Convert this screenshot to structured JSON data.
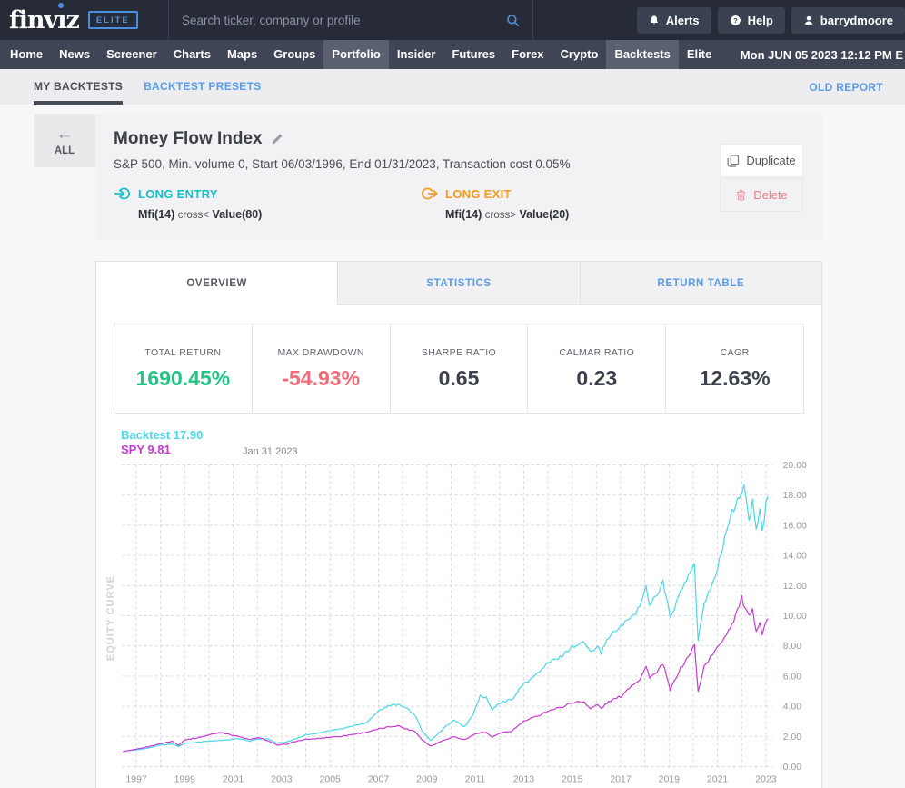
{
  "header": {
    "logo_text": "finviz",
    "logo_badge": "ELITE",
    "search": {
      "placeholder": "Search ticker, company or profile"
    },
    "buttons": [
      {
        "label": "Alerts",
        "icon": "bell-icon"
      },
      {
        "label": "Help",
        "icon": "help-icon"
      },
      {
        "label": "barrydmoore",
        "icon": "user-icon"
      }
    ],
    "accent_blue": "#4a90e2"
  },
  "nav": {
    "items": [
      {
        "label": "Home",
        "highlighted": false
      },
      {
        "label": "News",
        "highlighted": false
      },
      {
        "label": "Screener",
        "highlighted": false
      },
      {
        "label": "Charts",
        "highlighted": false
      },
      {
        "label": "Maps",
        "highlighted": false
      },
      {
        "label": "Groups",
        "highlighted": false
      },
      {
        "label": "Portfolio",
        "highlighted": true
      },
      {
        "label": "Insider",
        "highlighted": false
      },
      {
        "label": "Futures",
        "highlighted": false
      },
      {
        "label": "Forex",
        "highlighted": false
      },
      {
        "label": "Crypto",
        "highlighted": false
      },
      {
        "label": "Backtests",
        "highlighted": true
      },
      {
        "label": "Elite",
        "highlighted": false
      }
    ],
    "datetime": "Mon JUN 05 2023 12:12 PM E"
  },
  "subnav": {
    "tabs": [
      {
        "label": "MY BACKTESTS",
        "active": true
      },
      {
        "label": "BACKTEST PRESETS",
        "active": false
      }
    ],
    "right_link": "OLD REPORT"
  },
  "backtest": {
    "back_label": "ALL",
    "title": "Money Flow Index",
    "subtitle": "S&P 500, Min. volume 0, Start 06/03/1996, End 01/31/2023, Transaction cost 0.05%",
    "long_entry": {
      "label": "LONG ENTRY",
      "indicator": "Mfi(14)",
      "operator": "cross<",
      "target": "Value(80)",
      "color": "#16bfc9"
    },
    "long_exit": {
      "label": "LONG EXIT",
      "indicator": "Mfi(14)",
      "operator": "cross>",
      "target": "Value(20)",
      "color": "#f59a23"
    },
    "actions": {
      "duplicate": "Duplicate",
      "delete": "Delete"
    }
  },
  "tabs": [
    {
      "label": "OVERVIEW",
      "active": true
    },
    {
      "label": "STATISTICS",
      "active": false
    },
    {
      "label": "RETURN TABLE",
      "active": false
    }
  ],
  "stats": [
    {
      "label": "TOTAL RETURN",
      "value": "1690.45%",
      "color": "#21c584"
    },
    {
      "label": "MAX DRAWDOWN",
      "value": "-54.93%",
      "color": "#f56a77"
    },
    {
      "label": "SHARPE RATIO",
      "value": "0.65",
      "color": "#3b404c"
    },
    {
      "label": "CALMAR RATIO",
      "value": "0.23",
      "color": "#3b404c"
    },
    {
      "label": "CAGR",
      "value": "12.63%",
      "color": "#3b404c"
    }
  ],
  "chart_data": {
    "type": "line",
    "title": "EQUITY CURVE",
    "annotation": "Jan 31 2023",
    "legend_position": "top-left",
    "grid": true,
    "xlim": [
      1996.42,
      2023.25
    ],
    "ylim": [
      0,
      20
    ],
    "x_ticks": [
      1997,
      1999,
      2001,
      2003,
      2005,
      2007,
      2009,
      2011,
      2013,
      2015,
      2017,
      2019,
      2021,
      2023
    ],
    "y_ticks": [
      0,
      2,
      4,
      6,
      8,
      10,
      12,
      14,
      16,
      18,
      20
    ],
    "legend": [
      {
        "name": "Backtest",
        "value": "17.90"
      },
      {
        "name": "SPY",
        "value": "9.81"
      }
    ],
    "series": [
      {
        "name": "Backtest",
        "color": "#4ad7e7",
        "points": [
          [
            1996.45,
            1.0
          ],
          [
            1997.0,
            1.12
          ],
          [
            1997.5,
            1.22
          ],
          [
            1998.0,
            1.42
          ],
          [
            1998.5,
            1.5
          ],
          [
            1998.75,
            1.33
          ],
          [
            1999.0,
            1.55
          ],
          [
            1999.5,
            1.62
          ],
          [
            2000.0,
            1.68
          ],
          [
            2000.5,
            1.74
          ],
          [
            2001.2,
            1.85
          ],
          [
            2001.7,
            1.68
          ],
          [
            2002.0,
            1.83
          ],
          [
            2002.4,
            1.85
          ],
          [
            2002.8,
            1.55
          ],
          [
            2003.2,
            1.63
          ],
          [
            2003.6,
            1.85
          ],
          [
            2004.0,
            2.12
          ],
          [
            2004.5,
            2.22
          ],
          [
            2005.0,
            2.38
          ],
          [
            2005.5,
            2.52
          ],
          [
            2006.0,
            2.72
          ],
          [
            2006.5,
            2.92
          ],
          [
            2007.0,
            3.7
          ],
          [
            2007.4,
            4.0
          ],
          [
            2007.8,
            4.15
          ],
          [
            2008.1,
            3.95
          ],
          [
            2008.5,
            3.4
          ],
          [
            2008.8,
            2.4
          ],
          [
            2009.15,
            1.72
          ],
          [
            2009.5,
            2.25
          ],
          [
            2009.8,
            2.7
          ],
          [
            2010.1,
            3.05
          ],
          [
            2010.55,
            2.65
          ],
          [
            2010.9,
            3.4
          ],
          [
            2011.2,
            4.7
          ],
          [
            2011.45,
            4.55
          ],
          [
            2011.7,
            3.75
          ],
          [
            2012.0,
            4.2
          ],
          [
            2012.5,
            4.45
          ],
          [
            2013.0,
            5.5
          ],
          [
            2013.5,
            6.05
          ],
          [
            2014.0,
            6.85
          ],
          [
            2014.5,
            7.25
          ],
          [
            2015.0,
            7.95
          ],
          [
            2015.5,
            8.25
          ],
          [
            2015.75,
            7.55
          ],
          [
            2016.05,
            8.1
          ],
          [
            2016.2,
            7.55
          ],
          [
            2016.5,
            8.6
          ],
          [
            2017.0,
            9.25
          ],
          [
            2017.45,
            9.95
          ],
          [
            2017.8,
            10.6
          ],
          [
            2018.05,
            11.9
          ],
          [
            2018.2,
            10.75
          ],
          [
            2018.5,
            11.45
          ],
          [
            2018.75,
            12.25
          ],
          [
            2019.05,
            9.85
          ],
          [
            2019.4,
            11.25
          ],
          [
            2019.8,
            12.65
          ],
          [
            2020.05,
            13.35
          ],
          [
            2020.2,
            8.25
          ],
          [
            2020.45,
            10.85
          ],
          [
            2020.8,
            12.25
          ],
          [
            2021.0,
            13.05
          ],
          [
            2021.3,
            15.2
          ],
          [
            2021.6,
            16.8
          ],
          [
            2021.9,
            17.9
          ],
          [
            2022.1,
            18.55
          ],
          [
            2022.3,
            16.4
          ],
          [
            2022.45,
            17.5
          ],
          [
            2022.6,
            15.8
          ],
          [
            2022.75,
            16.9
          ],
          [
            2022.85,
            15.4
          ],
          [
            2023.0,
            17.3
          ],
          [
            2023.08,
            17.9
          ]
        ]
      },
      {
        "name": "SPY",
        "color": "#c63ad2",
        "points": [
          [
            1996.45,
            1.0
          ],
          [
            1997.0,
            1.14
          ],
          [
            1997.5,
            1.32
          ],
          [
            1998.0,
            1.52
          ],
          [
            1998.5,
            1.68
          ],
          [
            1998.75,
            1.42
          ],
          [
            1999.0,
            1.78
          ],
          [
            1999.5,
            1.9
          ],
          [
            2000.0,
            2.1
          ],
          [
            2000.5,
            2.28
          ],
          [
            2000.8,
            2.15
          ],
          [
            2001.2,
            2.0
          ],
          [
            2001.7,
            1.78
          ],
          [
            2002.0,
            1.92
          ],
          [
            2002.4,
            1.75
          ],
          [
            2002.8,
            1.42
          ],
          [
            2003.2,
            1.48
          ],
          [
            2003.6,
            1.68
          ],
          [
            2004.0,
            1.8
          ],
          [
            2004.5,
            1.86
          ],
          [
            2005.0,
            1.95
          ],
          [
            2005.5,
            2.02
          ],
          [
            2006.0,
            2.15
          ],
          [
            2006.5,
            2.28
          ],
          [
            2007.0,
            2.48
          ],
          [
            2007.4,
            2.62
          ],
          [
            2007.8,
            2.72
          ],
          [
            2008.1,
            2.52
          ],
          [
            2008.5,
            2.35
          ],
          [
            2008.8,
            1.8
          ],
          [
            2009.15,
            1.35
          ],
          [
            2009.5,
            1.62
          ],
          [
            2009.8,
            1.82
          ],
          [
            2010.1,
            1.98
          ],
          [
            2010.55,
            1.78
          ],
          [
            2010.9,
            2.08
          ],
          [
            2011.2,
            2.28
          ],
          [
            2011.45,
            2.25
          ],
          [
            2011.7,
            1.95
          ],
          [
            2012.0,
            2.2
          ],
          [
            2012.5,
            2.35
          ],
          [
            2013.0,
            3.0
          ],
          [
            2013.5,
            3.3
          ],
          [
            2014.0,
            3.7
          ],
          [
            2014.5,
            3.9
          ],
          [
            2015.0,
            4.25
          ],
          [
            2015.5,
            4.3
          ],
          [
            2015.75,
            3.85
          ],
          [
            2016.05,
            4.1
          ],
          [
            2016.2,
            3.85
          ],
          [
            2016.5,
            4.3
          ],
          [
            2017.0,
            4.65
          ],
          [
            2017.45,
            5.4
          ],
          [
            2017.8,
            5.8
          ],
          [
            2018.05,
            6.6
          ],
          [
            2018.2,
            5.95
          ],
          [
            2018.5,
            6.2
          ],
          [
            2018.75,
            6.85
          ],
          [
            2019.05,
            5.05
          ],
          [
            2019.4,
            6.3
          ],
          [
            2019.8,
            7.3
          ],
          [
            2020.05,
            8.05
          ],
          [
            2020.2,
            4.95
          ],
          [
            2020.45,
            6.65
          ],
          [
            2020.8,
            7.45
          ],
          [
            2021.0,
            7.85
          ],
          [
            2021.3,
            8.65
          ],
          [
            2021.6,
            9.45
          ],
          [
            2021.9,
            10.7
          ],
          [
            2022.0,
            11.15
          ],
          [
            2022.15,
            10.4
          ],
          [
            2022.3,
            9.9
          ],
          [
            2022.45,
            10.3
          ],
          [
            2022.6,
            9.1
          ],
          [
            2022.75,
            9.6
          ],
          [
            2022.85,
            8.75
          ],
          [
            2023.0,
            9.55
          ],
          [
            2023.08,
            9.81
          ]
        ]
      }
    ]
  }
}
